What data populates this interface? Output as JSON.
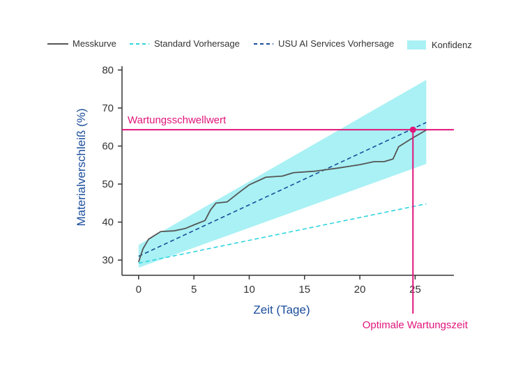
{
  "chart_data": {
    "type": "line",
    "xlabel": "Zeit (Tage)",
    "ylabel": "Materialverschleiß (%)",
    "xlim": [
      -1.5,
      28.5
    ],
    "ylim": [
      26,
      81
    ],
    "xticks": [
      0,
      5,
      10,
      15,
      20,
      25
    ],
    "yticks": [
      30,
      40,
      50,
      60,
      70,
      80
    ],
    "legend_position": "top",
    "legend": [
      {
        "label": "Messkurve",
        "kind": "solid-line"
      },
      {
        "label": "Standard Vorhersage",
        "kind": "dashed-line"
      },
      {
        "label": "USU AI Services Vorhersage",
        "kind": "dashed-line"
      },
      {
        "label": "Konfidenz",
        "kind": "band"
      }
    ],
    "series": [
      {
        "name": "Messkurve",
        "color": "#555555",
        "style": "solid",
        "x": [
          0,
          0.4,
          0.9,
          2,
          3.2,
          4.2,
          5.2,
          6,
          6.5,
          7,
          8,
          9,
          10,
          11.5,
          13,
          14,
          16,
          18,
          20,
          21.3,
          22.2,
          23,
          23.5,
          24.7,
          26
        ],
        "y": [
          29.5,
          33,
          35.5,
          37.5,
          37.7,
          38.3,
          39.5,
          40.4,
          43.2,
          45,
          45.3,
          47.6,
          49.8,
          51.8,
          52.1,
          53,
          53.4,
          54.2,
          55.1,
          55.9,
          55.9,
          56.6,
          59.8,
          62,
          64.2
        ]
      },
      {
        "name": "Standard Vorhersage",
        "color": "#2ed5dd",
        "style": "dashed",
        "x": [
          0,
          26
        ],
        "y": [
          29.2,
          44.8
        ]
      },
      {
        "name": "USU AI Services Vorhersage",
        "color": "#1a4c9a",
        "style": "dashed",
        "x": [
          0,
          26
        ],
        "y": [
          31,
          66.2
        ]
      }
    ],
    "confidence_band": {
      "name": "Konfidenz",
      "color": "#a9f1f4",
      "x": [
        0,
        26
      ],
      "upper": [
        34,
        77.4
      ],
      "lower": [
        28,
        55.3
      ]
    },
    "threshold": {
      "label": "Wartungsschwellwert",
      "y": 64.3,
      "color": "#e0157a"
    },
    "optimal_point": {
      "label": "Optimale Wartungszeit",
      "x": 24.8,
      "y": 64.3,
      "color": "#e0157a"
    }
  }
}
